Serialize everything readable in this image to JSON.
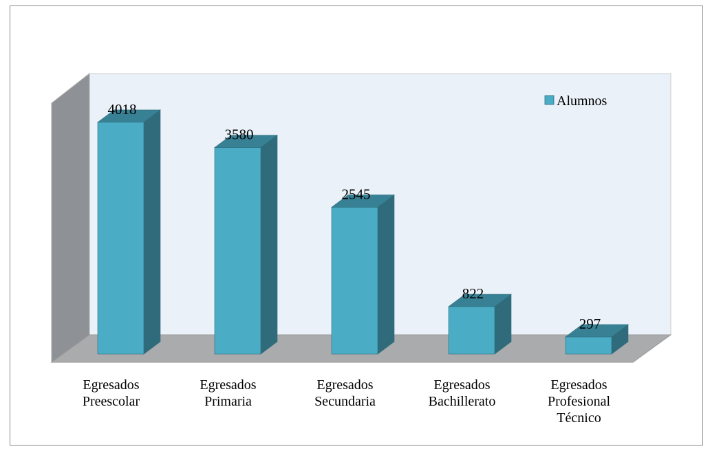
{
  "chart_data": {
    "type": "bar3d",
    "categories": [
      "Egresados Preescolar",
      "Egresados Primaria",
      "Egresados Secundaria",
      "Egresados Bachillerato",
      "Egresados Profesional Técnico"
    ],
    "series": [
      {
        "name": "Alumnos",
        "color": "#4bacc6",
        "values": [
          4018,
          3580,
          2545,
          822,
          297
        ]
      }
    ],
    "legend": "top-right"
  }
}
